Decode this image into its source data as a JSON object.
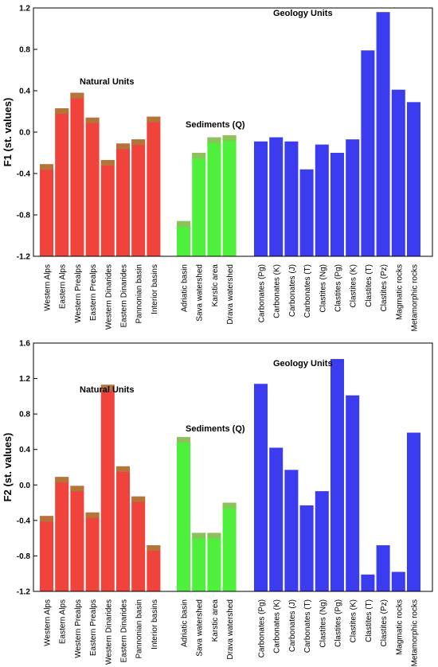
{
  "colors": {
    "natural": "#f0433c",
    "natural_top": "#b5753a",
    "sediments": "#4ef03c",
    "sediments_top": "#8dc15c",
    "geology": "#3b3bf0",
    "frame": "#000000"
  },
  "chart_data": [
    {
      "type": "bar",
      "ylabel": "F1 (st. values)",
      "ylim": [
        -1.2,
        1.2
      ],
      "yticks": [
        "1.2",
        "0.8",
        "0.4",
        "0.0",
        "-0.4",
        "-0.8",
        "-1.2"
      ],
      "grid": false,
      "groups": [
        {
          "name": "Natural Units",
          "color_key": "natural",
          "categories": [
            "Western Alps",
            "Eastern Alps",
            "Western Prealps",
            "Eastern Prealps",
            "Western Dinarides",
            "Eastern Dinarides",
            "Pannonian basin",
            "Interior basins"
          ],
          "values": [
            -0.31,
            0.23,
            0.38,
            0.14,
            -0.27,
            -0.11,
            -0.07,
            0.15
          ]
        },
        {
          "name": "Sediments (Q)",
          "color_key": "sediments",
          "categories": [
            "Adriatic basin",
            "Sava watershed",
            "Karstic area",
            "Drava watershed"
          ],
          "values": [
            -0.86,
            -0.2,
            -0.05,
            -0.03
          ]
        },
        {
          "name": "Geology Units",
          "color_key": "geology",
          "categories": [
            "Carbonates (Pg)",
            "Carbonates (K)",
            "Carbonates (J)",
            "Carbonates (T)",
            "Clastites (Ng)",
            "Clastites (Pg)",
            "Clastites (K)",
            "Clastites (T)",
            "Clastites (Pz)",
            "Magmatic rocks",
            "Metamorphic rocks"
          ],
          "values": [
            -0.09,
            -0.05,
            -0.09,
            -0.36,
            -0.12,
            -0.2,
            -0.07,
            0.79,
            1.16,
            0.41,
            0.29
          ]
        }
      ]
    },
    {
      "type": "bar",
      "ylabel": "F2 (st. values)",
      "ylim": [
        -1.2,
        1.6
      ],
      "yticks": [
        "1.6",
        "1.2",
        "0.8",
        "0.4",
        "0.0",
        "-0.4",
        "-0.8",
        "-1.2"
      ],
      "grid": false,
      "groups": [
        {
          "name": "Natural Units",
          "color_key": "natural",
          "categories": [
            "Western Alps",
            "Eastern Alps",
            "Western Prealps",
            "Eastern Prealps",
            "Western Dinarides",
            "Eastern Dinarides",
            "Pannonian basin",
            "Interior basins"
          ],
          "values": [
            -0.35,
            0.09,
            -0.01,
            -0.31,
            1.13,
            0.21,
            -0.13,
            -0.68
          ]
        },
        {
          "name": "Sediments (Q)",
          "color_key": "sediments",
          "categories": [
            "Adriatic basin",
            "Sava watershed",
            "Karstic area",
            "Drava watershed"
          ],
          "values": [
            0.54,
            -0.54,
            -0.54,
            -0.2
          ]
        },
        {
          "name": "Geology Units",
          "color_key": "geology",
          "categories": [
            "Carbonates (Pg)",
            "Carbonates (K)",
            "Carbonates (J)",
            "Carbonates (T)",
            "Clastites (Ng)",
            "Clastites (Pg)",
            "Clastites (K)",
            "Clastites (T)",
            "Clastites (Pz)",
            "Magmatic rocks",
            "Metamorphic rocks"
          ],
          "values": [
            1.14,
            0.42,
            0.17,
            -0.23,
            -0.07,
            1.42,
            1.01,
            -1.01,
            -0.68,
            -0.98,
            0.59
          ]
        }
      ]
    }
  ]
}
